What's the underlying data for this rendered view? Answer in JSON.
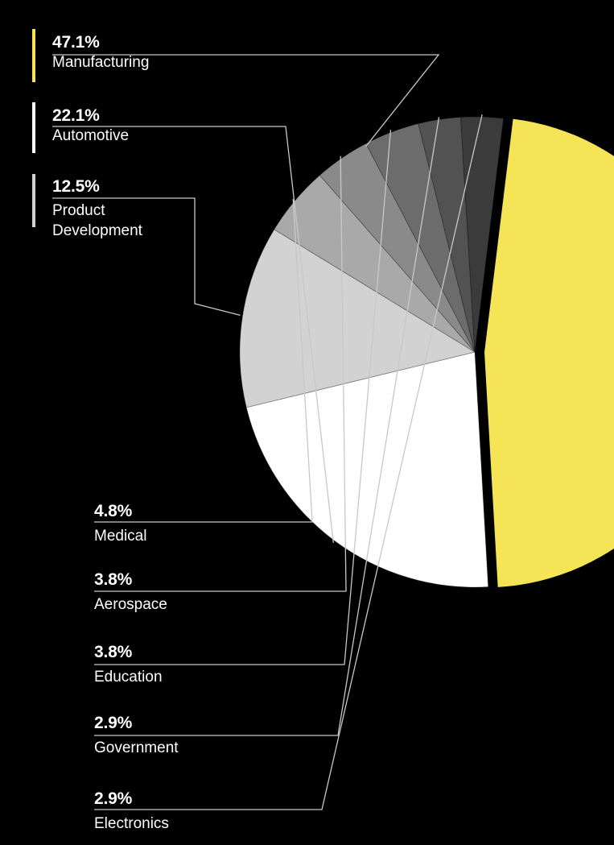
{
  "chart_data": {
    "type": "pie",
    "title": "",
    "slices": [
      {
        "label": "Manufacturing",
        "value": 47.1,
        "display": "47.1%",
        "color": "#f4e456"
      },
      {
        "label": "Automotive",
        "value": 22.1,
        "display": "22.1%",
        "color": "#ffffff"
      },
      {
        "label": "Product Development",
        "value": 12.5,
        "display": "12.5%",
        "color": "#d2d2d2"
      },
      {
        "label": "Medical",
        "value": 4.8,
        "display": "4.8%",
        "color": "#a9a9a9"
      },
      {
        "label": "Aerospace",
        "value": 3.8,
        "display": "3.8%",
        "color": "#8a8a8a"
      },
      {
        "label": "Education",
        "value": 3.8,
        "display": "3.8%",
        "color": "#6c6c6c"
      },
      {
        "label": "Government",
        "value": 2.9,
        "display": "2.9%",
        "color": "#525252"
      },
      {
        "label": "Electronics",
        "value": 2.9,
        "display": "2.9%",
        "color": "#3b3b3b"
      }
    ],
    "legend": "leader-line labels"
  }
}
